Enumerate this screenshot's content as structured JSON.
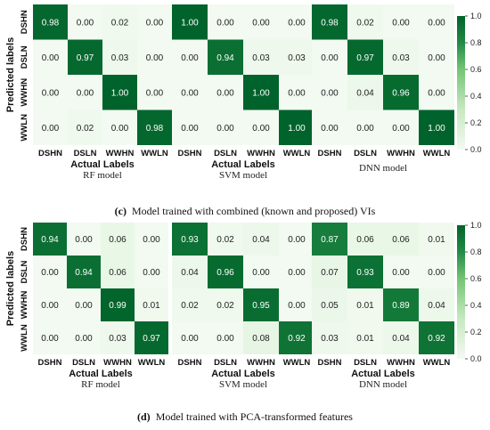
{
  "chart_data": [
    {
      "type": "heatmap",
      "model": "RF model",
      "categories": [
        "DSHN",
        "DSLN",
        "WWHN",
        "WWLN"
      ],
      "values": [
        [
          0.98,
          0.0,
          0.02,
          0.0
        ],
        [
          0.0,
          0.97,
          0.03,
          0.0
        ],
        [
          0.0,
          0.0,
          1.0,
          0.0
        ],
        [
          0.0,
          0.02,
          0.0,
          0.98
        ]
      ],
      "xlabel": "Actual Labels",
      "ylabel": "Predicted labels"
    },
    {
      "type": "heatmap",
      "model": "SVM model",
      "categories": [
        "DSHN",
        "DSLN",
        "WWHN",
        "WWLN"
      ],
      "values": [
        [
          1.0,
          0.0,
          0.0,
          0.0
        ],
        [
          0.0,
          0.94,
          0.03,
          0.03
        ],
        [
          0.0,
          0.0,
          1.0,
          0.0
        ],
        [
          0.0,
          0.0,
          0.0,
          1.0
        ]
      ],
      "xlabel": "Actual Labels",
      "ylabel": ""
    },
    {
      "type": "heatmap",
      "model": "DNN model",
      "categories": [
        "DSHN",
        "DSLN",
        "WWHN",
        "WWLN"
      ],
      "values": [
        [
          0.98,
          0.02,
          0.0,
          0.0
        ],
        [
          0.0,
          0.97,
          0.03,
          0.0
        ],
        [
          0.0,
          0.04,
          0.96,
          0.0
        ],
        [
          0.0,
          0.0,
          0.0,
          1.0
        ]
      ],
      "xlabel": "",
      "ylabel": ""
    },
    {
      "type": "heatmap",
      "model": "RF model",
      "categories": [
        "DSHN",
        "DSLN",
        "WWHN",
        "WWLN"
      ],
      "values": [
        [
          0.94,
          0.0,
          0.06,
          0.0
        ],
        [
          0.0,
          0.94,
          0.06,
          0.0
        ],
        [
          0.0,
          0.0,
          0.99,
          0.01
        ],
        [
          0.0,
          0.0,
          0.03,
          0.97
        ]
      ],
      "xlabel": "Actual Labels",
      "ylabel": "Predicted labels"
    },
    {
      "type": "heatmap",
      "model": "SVM model",
      "categories": [
        "DSHN",
        "DSLN",
        "WWHN",
        "WWLN"
      ],
      "values": [
        [
          0.93,
          0.02,
          0.04,
          0.0
        ],
        [
          0.04,
          0.96,
          0.0,
          0.0
        ],
        [
          0.02,
          0.02,
          0.95,
          0.0
        ],
        [
          0.0,
          0.0,
          0.08,
          0.92
        ]
      ],
      "xlabel": "Actual Labels",
      "ylabel": ""
    },
    {
      "type": "heatmap",
      "model": "DNN model",
      "categories": [
        "DSHN",
        "DSLN",
        "WWHN",
        "WWLN"
      ],
      "values": [
        [
          0.87,
          0.06,
          0.06,
          0.01
        ],
        [
          0.07,
          0.93,
          0.0,
          0.0
        ],
        [
          0.05,
          0.01,
          0.89,
          0.04
        ],
        [
          0.03,
          0.01,
          0.04,
          0.92
        ]
      ],
      "xlabel": "Actual Labels",
      "ylabel": ""
    }
  ],
  "colorbar": {
    "ticks": [
      "0.0",
      "0.2",
      "0.4",
      "0.6",
      "0.8",
      "1.0"
    ],
    "low_color": "#f2faf1",
    "high_color": "#00632b"
  },
  "captions": {
    "c_label": "(c)",
    "c_text": "Model trained with combined (known and proposed) VIs",
    "d_label": "(d)",
    "d_text": "Model trained with PCA-transformed features"
  }
}
